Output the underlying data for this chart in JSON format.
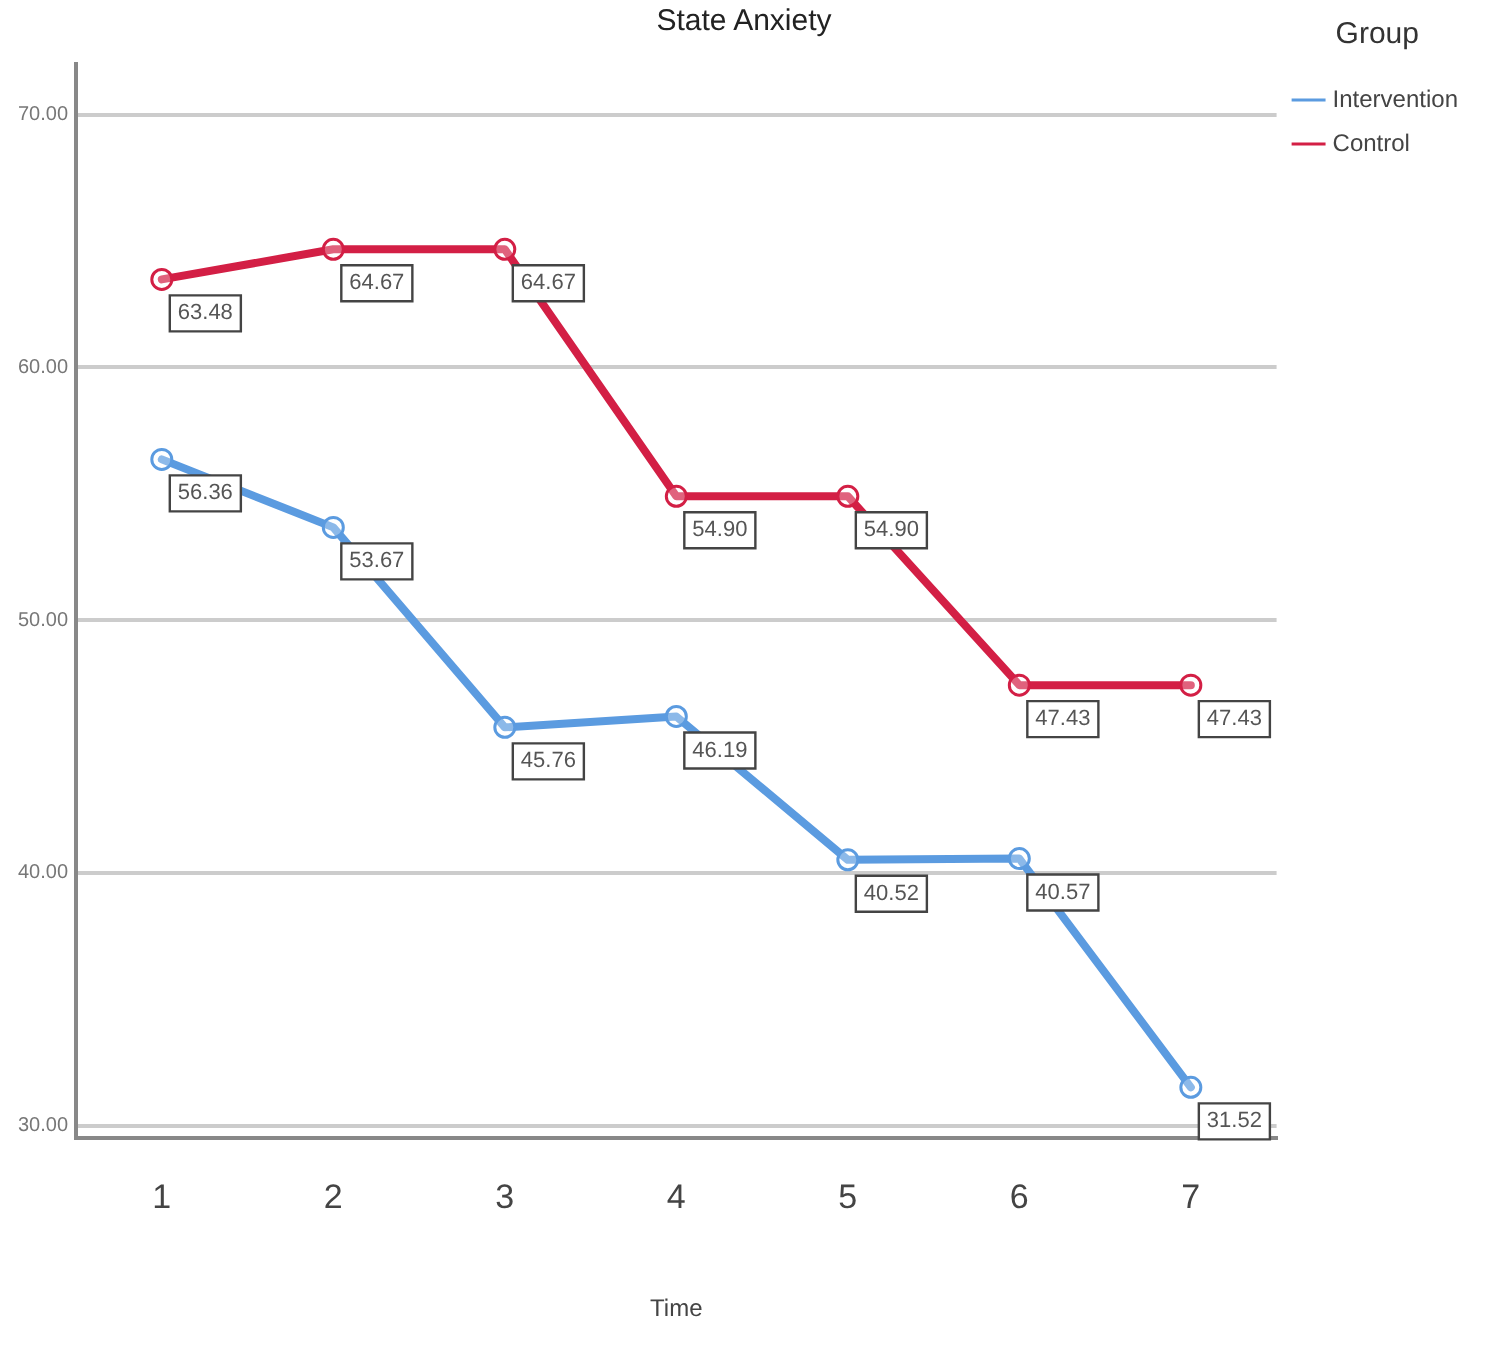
{
  "chart_data": {
    "type": "line",
    "title": "State Anxiety",
    "xlabel": "Time",
    "legend_title": "Group",
    "categories": [
      "1",
      "2",
      "3",
      "4",
      "5",
      "6",
      "7"
    ],
    "series": [
      {
        "name": "Intervention",
        "color": "#5b9be0",
        "values": [
          56.36,
          53.67,
          45.76,
          46.19,
          40.52,
          40.57,
          31.52
        ],
        "value_labels": [
          "56.36",
          "53.67",
          "45.76",
          "46.19",
          "40.52",
          "40.57",
          "31.52"
        ]
      },
      {
        "name": "Control",
        "color": "#d31f45",
        "values": [
          63.48,
          64.67,
          64.67,
          54.9,
          54.9,
          47.43,
          47.43
        ],
        "value_labels": [
          "63.48",
          "64.67",
          "64.67",
          "54.90",
          "54.90",
          "47.43",
          "47.43"
        ]
      }
    ],
    "ylim": [
      29.5,
      72
    ],
    "yticks": [
      {
        "value": 30,
        "label": "30.00"
      },
      {
        "value": 40,
        "label": "40.00"
      },
      {
        "value": 50,
        "label": "50.00"
      },
      {
        "value": 60,
        "label": "60.00"
      },
      {
        "value": 70,
        "label": "70.00"
      }
    ],
    "grid": "y",
    "legend": "top right",
    "marker": "circle",
    "line_style": "solid"
  }
}
